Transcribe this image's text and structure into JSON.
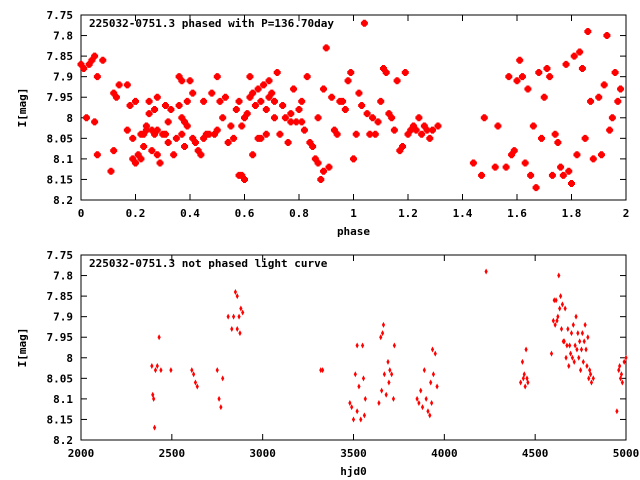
{
  "colors": {
    "points": "#ff0000",
    "frame": "#000000",
    "background": "#ffffff"
  },
  "chart_data": [
    {
      "type": "scatter",
      "title": "225032-0751.3 phased with P=136.70day",
      "xlabel": "phase",
      "ylabel": "I[mag]",
      "xlim": [
        0,
        2
      ],
      "ylim": [
        7.75,
        8.2
      ],
      "y_inverted": true,
      "xticks": [
        0,
        0.2,
        0.4,
        0.6,
        0.8,
        1,
        1.2,
        1.4,
        1.6,
        1.8,
        2
      ],
      "xtick_labels": [
        "0",
        "0.2",
        "0.4",
        "0.6",
        "0.8",
        "1",
        "1.2",
        "1.4",
        "1.6",
        "1.8",
        "2"
      ],
      "yticks": [
        7.75,
        7.8,
        7.85,
        7.9,
        7.95,
        8.0,
        8.05,
        8.1,
        8.15,
        8.2
      ],
      "ytick_labels": [
        "7.75",
        "7.8",
        "7.85",
        "7.9",
        "7.95",
        "8",
        "8.05",
        "8.1",
        "8.15",
        "8.2"
      ],
      "grid": false,
      "points": [
        [
          0.0,
          7.87
        ],
        [
          0.01,
          7.88
        ],
        [
          0.02,
          8.0
        ],
        [
          0.03,
          7.87
        ],
        [
          0.04,
          7.86
        ],
        [
          0.05,
          8.01
        ],
        [
          0.05,
          7.85
        ],
        [
          0.06,
          8.09
        ],
        [
          0.06,
          7.9
        ],
        [
          0.08,
          7.86
        ],
        [
          0.11,
          8.13
        ],
        [
          0.12,
          8.08
        ],
        [
          0.12,
          7.94
        ],
        [
          0.13,
          7.95
        ],
        [
          0.14,
          7.92
        ],
        [
          0.17,
          7.92
        ],
        [
          0.17,
          8.03
        ],
        [
          0.18,
          7.97
        ],
        [
          0.19,
          8.1
        ],
        [
          0.19,
          8.05
        ],
        [
          0.2,
          8.11
        ],
        [
          0.2,
          7.96
        ],
        [
          0.21,
          8.09
        ],
        [
          0.22,
          8.04
        ],
        [
          0.22,
          8.1
        ],
        [
          0.23,
          8.04
        ],
        [
          0.23,
          8.07
        ],
        [
          0.24,
          8.02
        ],
        [
          0.24,
          8.03
        ],
        [
          0.25,
          7.96
        ],
        [
          0.25,
          7.99
        ],
        [
          0.26,
          8.08
        ],
        [
          0.26,
          8.03
        ],
        [
          0.27,
          8.04
        ],
        [
          0.27,
          7.98
        ],
        [
          0.28,
          8.09
        ],
        [
          0.28,
          8.03
        ],
        [
          0.28,
          7.95
        ],
        [
          0.29,
          8.11
        ],
        [
          0.3,
          8.04
        ],
        [
          0.31,
          8.04
        ],
        [
          0.31,
          7.97
        ],
        [
          0.32,
          8.01
        ],
        [
          0.32,
          8.06
        ],
        [
          0.33,
          7.98
        ],
        [
          0.34,
          8.09
        ],
        [
          0.35,
          8.05
        ],
        [
          0.36,
          7.9
        ],
        [
          0.36,
          7.97
        ],
        [
          0.37,
          8.04
        ],
        [
          0.37,
          8.0
        ],
        [
          0.37,
          7.91
        ],
        [
          0.38,
          8.01
        ],
        [
          0.38,
          8.07
        ],
        [
          0.39,
          7.96
        ],
        [
          0.39,
          8.02
        ],
        [
          0.4,
          7.91
        ],
        [
          0.41,
          7.94
        ],
        [
          0.41,
          8.05
        ],
        [
          0.42,
          8.06
        ],
        [
          0.43,
          8.08
        ],
        [
          0.44,
          8.09
        ],
        [
          0.45,
          8.05
        ],
        [
          0.45,
          7.96
        ],
        [
          0.46,
          8.04
        ],
        [
          0.47,
          8.04
        ],
        [
          0.48,
          7.94
        ],
        [
          0.49,
          8.04
        ],
        [
          0.5,
          7.9
        ],
        [
          0.5,
          8.03
        ],
        [
          0.51,
          7.96
        ],
        [
          0.52,
          8.0
        ],
        [
          0.53,
          7.95
        ],
        [
          0.54,
          8.06
        ],
        [
          0.55,
          8.02
        ],
        [
          0.56,
          8.05
        ],
        [
          0.57,
          7.98
        ],
        [
          0.58,
          8.14
        ],
        [
          0.58,
          7.96
        ],
        [
          0.59,
          8.02
        ],
        [
          0.59,
          8.14
        ],
        [
          0.6,
          8.15
        ],
        [
          0.6,
          8.0
        ],
        [
          0.61,
          7.99
        ],
        [
          0.62,
          7.9
        ],
        [
          0.62,
          7.95
        ],
        [
          0.63,
          8.09
        ],
        [
          0.63,
          7.94
        ],
        [
          0.64,
          7.97
        ],
        [
          0.65,
          8.05
        ],
        [
          0.65,
          7.93
        ],
        [
          0.66,
          8.05
        ],
        [
          0.66,
          7.96
        ],
        [
          0.67,
          7.92
        ],
        [
          0.68,
          7.98
        ],
        [
          0.68,
          8.04
        ],
        [
          0.69,
          7.91
        ],
        [
          0.69,
          7.95
        ],
        [
          0.7,
          7.94
        ],
        [
          0.71,
          8.0
        ],
        [
          0.71,
          7.96
        ],
        [
          0.72,
          7.89
        ],
        [
          0.73,
          8.04
        ],
        [
          0.74,
          7.97
        ],
        [
          0.75,
          8.0
        ],
        [
          0.76,
          8.06
        ],
        [
          0.77,
          7.99
        ],
        [
          0.77,
          8.01
        ],
        [
          0.78,
          7.93
        ],
        [
          0.79,
          8.01
        ],
        [
          0.8,
          7.98
        ],
        [
          0.81,
          8.01
        ],
        [
          0.81,
          7.96
        ],
        [
          0.82,
          8.03
        ],
        [
          0.83,
          7.9
        ],
        [
          0.84,
          8.06
        ],
        [
          0.85,
          8.07
        ],
        [
          0.86,
          8.1
        ],
        [
          0.87,
          8.11
        ],
        [
          0.87,
          8.0
        ],
        [
          0.88,
          8.15
        ],
        [
          0.89,
          8.13
        ],
        [
          0.89,
          7.93
        ],
        [
          0.9,
          7.83
        ],
        [
          0.91,
          8.12
        ],
        [
          0.92,
          7.95
        ],
        [
          0.93,
          8.03
        ],
        [
          0.94,
          8.04
        ],
        [
          0.95,
          7.96
        ],
        [
          0.96,
          7.96
        ],
        [
          0.97,
          7.98
        ],
        [
          0.98,
          7.91
        ],
        [
          0.99,
          7.89
        ],
        [
          1.0,
          8.1
        ],
        [
          1.01,
          8.04
        ],
        [
          1.02,
          7.94
        ],
        [
          1.03,
          7.97
        ],
        [
          1.04,
          7.77
        ],
        [
          1.05,
          7.99
        ],
        [
          1.06,
          8.04
        ],
        [
          1.07,
          8.0
        ],
        [
          1.08,
          8.04
        ],
        [
          1.09,
          8.01
        ],
        [
          1.1,
          7.96
        ],
        [
          1.11,
          7.88
        ],
        [
          1.12,
          7.89
        ],
        [
          1.13,
          7.99
        ],
        [
          1.14,
          8.0
        ],
        [
          1.15,
          8.03
        ],
        [
          1.16,
          7.91
        ],
        [
          1.17,
          8.08
        ],
        [
          1.18,
          8.07
        ],
        [
          1.19,
          7.89
        ],
        [
          1.2,
          8.04
        ],
        [
          1.21,
          8.03
        ],
        [
          1.22,
          8.02
        ],
        [
          1.23,
          8.03
        ],
        [
          1.24,
          8.0
        ],
        [
          1.25,
          8.04
        ],
        [
          1.26,
          8.02
        ],
        [
          1.27,
          8.03
        ],
        [
          1.28,
          8.05
        ],
        [
          1.29,
          8.03
        ],
        [
          1.31,
          8.02
        ],
        [
          1.44,
          8.11
        ],
        [
          1.47,
          8.14
        ],
        [
          1.48,
          8.0
        ],
        [
          1.52,
          8.12
        ],
        [
          1.53,
          8.02
        ],
        [
          1.56,
          8.12
        ],
        [
          1.57,
          7.9
        ],
        [
          1.58,
          8.09
        ],
        [
          1.59,
          8.08
        ],
        [
          1.6,
          7.91
        ],
        [
          1.61,
          7.86
        ],
        [
          1.62,
          7.9
        ],
        [
          1.63,
          8.11
        ],
        [
          1.64,
          7.93
        ],
        [
          1.65,
          8.14
        ],
        [
          1.66,
          8.02
        ],
        [
          1.67,
          8.17
        ],
        [
          1.68,
          7.89
        ],
        [
          1.69,
          8.05
        ],
        [
          1.7,
          7.95
        ],
        [
          1.71,
          7.88
        ],
        [
          1.72,
          7.9
        ],
        [
          1.73,
          8.14
        ],
        [
          1.74,
          8.04
        ],
        [
          1.75,
          8.06
        ],
        [
          1.76,
          8.12
        ],
        [
          1.77,
          8.14
        ],
        [
          1.78,
          7.87
        ],
        [
          1.79,
          8.13
        ],
        [
          1.8,
          8.16
        ],
        [
          1.81,
          7.85
        ],
        [
          1.82,
          8.09
        ],
        [
          1.83,
          7.84
        ],
        [
          1.84,
          7.88
        ],
        [
          1.85,
          8.05
        ],
        [
          1.86,
          7.79
        ],
        [
          1.87,
          7.96
        ],
        [
          1.88,
          8.1
        ],
        [
          1.9,
          7.95
        ],
        [
          1.91,
          8.09
        ],
        [
          1.92,
          7.92
        ],
        [
          1.93,
          7.8
        ],
        [
          1.94,
          8.03
        ],
        [
          1.95,
          8.0
        ],
        [
          1.96,
          7.89
        ],
        [
          1.97,
          7.96
        ],
        [
          1.98,
          7.93
        ]
      ]
    },
    {
      "type": "scatter",
      "title": "225032-0751.3 not phased light curve",
      "xlabel": "hjd0",
      "ylabel": "I[mag]",
      "xlim": [
        2000,
        5000
      ],
      "ylim": [
        7.75,
        8.2
      ],
      "y_inverted": true,
      "xticks": [
        2000,
        2500,
        3000,
        3500,
        4000,
        4500,
        5000
      ],
      "xtick_labels": [
        "2000",
        "2500",
        "3000",
        "3500",
        "4000",
        "4500",
        "5000"
      ],
      "yticks": [
        7.75,
        7.8,
        7.85,
        7.9,
        7.95,
        8.0,
        8.05,
        8.1,
        8.15,
        8.2
      ],
      "ytick_labels": [
        "7.75",
        "7.8",
        "7.85",
        "7.9",
        "7.95",
        "8",
        "8.05",
        "8.1",
        "8.15",
        "8.2"
      ],
      "grid": false,
      "points": [
        [
          2390,
          8.02
        ],
        [
          2395,
          8.09
        ],
        [
          2400,
          8.1
        ],
        [
          2405,
          8.17
        ],
        [
          2410,
          8.03
        ],
        [
          2420,
          8.02
        ],
        [
          2430,
          7.95
        ],
        [
          2440,
          8.03
        ],
        [
          2495,
          8.03
        ],
        [
          2610,
          8.03
        ],
        [
          2620,
          8.04
        ],
        [
          2630,
          8.06
        ],
        [
          2640,
          8.07
        ],
        [
          2750,
          8.03
        ],
        [
          2760,
          8.1
        ],
        [
          2770,
          8.12
        ],
        [
          2780,
          8.05
        ],
        [
          2810,
          7.9
        ],
        [
          2830,
          7.93
        ],
        [
          2840,
          7.9
        ],
        [
          2850,
          7.84
        ],
        [
          2860,
          7.85
        ],
        [
          2860,
          7.93
        ],
        [
          2870,
          7.9
        ],
        [
          2875,
          7.94
        ],
        [
          2880,
          7.88
        ],
        [
          2890,
          7.89
        ],
        [
          3320,
          8.03
        ],
        [
          3330,
          8.03
        ],
        [
          3480,
          8.11
        ],
        [
          3490,
          8.12
        ],
        [
          3500,
          8.15
        ],
        [
          3510,
          8.04
        ],
        [
          3520,
          7.97
        ],
        [
          3520,
          8.13
        ],
        [
          3530,
          8.07
        ],
        [
          3540,
          8.15
        ],
        [
          3550,
          7.97
        ],
        [
          3555,
          8.05
        ],
        [
          3560,
          8.14
        ],
        [
          3565,
          8.1
        ],
        [
          3640,
          8.11
        ],
        [
          3650,
          7.95
        ],
        [
          3655,
          8.08
        ],
        [
          3660,
          7.94
        ],
        [
          3665,
          7.92
        ],
        [
          3670,
          8.04
        ],
        [
          3680,
          8.09
        ],
        [
          3690,
          8.01
        ],
        [
          3695,
          8.06
        ],
        [
          3700,
          8.03
        ],
        [
          3710,
          8.04
        ],
        [
          3720,
          8.1
        ],
        [
          3725,
          7.97
        ],
        [
          3850,
          8.1
        ],
        [
          3860,
          8.11
        ],
        [
          3870,
          8.08
        ],
        [
          3880,
          8.12
        ],
        [
          3890,
          8.03
        ],
        [
          3900,
          8.1
        ],
        [
          3910,
          8.13
        ],
        [
          3920,
          8.14
        ],
        [
          3925,
          8.06
        ],
        [
          3930,
          8.11
        ],
        [
          3935,
          7.98
        ],
        [
          3940,
          8.04
        ],
        [
          3950,
          7.99
        ],
        [
          3960,
          8.07
        ],
        [
          4230,
          7.79
        ],
        [
          4420,
          8.06
        ],
        [
          4430,
          8.01
        ],
        [
          4435,
          8.05
        ],
        [
          4440,
          8.04
        ],
        [
          4445,
          8.07
        ],
        [
          4450,
          7.98
        ],
        [
          4455,
          8.05
        ],
        [
          4460,
          8.06
        ],
        [
          4590,
          7.99
        ],
        [
          4600,
          7.91
        ],
        [
          4605,
          7.86
        ],
        [
          4610,
          7.92
        ],
        [
          4615,
          7.86
        ],
        [
          4620,
          7.91
        ],
        [
          4625,
          7.9
        ],
        [
          4630,
          7.8
        ],
        [
          4635,
          7.88
        ],
        [
          4640,
          7.85
        ],
        [
          4645,
          7.93
        ],
        [
          4650,
          7.87
        ],
        [
          4655,
          7.96
        ],
        [
          4660,
          7.96
        ],
        [
          4665,
          7.88
        ],
        [
          4670,
          8.0
        ],
        [
          4675,
          7.97
        ],
        [
          4680,
          7.93
        ],
        [
          4685,
          8.02
        ],
        [
          4690,
          7.97
        ],
        [
          4695,
          7.99
        ],
        [
          4700,
          7.94
        ],
        [
          4705,
          8.0
        ],
        [
          4710,
          7.92
        ],
        [
          4715,
          8.01
        ],
        [
          4720,
          7.97
        ],
        [
          4725,
          7.9
        ],
        [
          4730,
          7.98
        ],
        [
          4735,
          7.94
        ],
        [
          4740,
          8.0
        ],
        [
          4745,
          7.96
        ],
        [
          4750,
          8.03
        ],
        [
          4755,
          7.98
        ],
        [
          4760,
          7.94
        ],
        [
          4765,
          8.01
        ],
        [
          4770,
          7.96
        ],
        [
          4775,
          7.92
        ],
        [
          4780,
          7.98
        ],
        [
          4785,
          8.02
        ],
        [
          4790,
          7.95
        ],
        [
          4795,
          8.05
        ],
        [
          4800,
          8.03
        ],
        [
          4805,
          8.04
        ],
        [
          4810,
          8.06
        ],
        [
          4820,
          8.05
        ],
        [
          4950,
          8.13
        ],
        [
          4960,
          8.03
        ],
        [
          4965,
          8.02
        ],
        [
          4970,
          8.05
        ],
        [
          4975,
          8.04
        ],
        [
          4980,
          8.06
        ],
        [
          4990,
          8.01
        ],
        [
          5000,
          8.0
        ]
      ]
    }
  ]
}
